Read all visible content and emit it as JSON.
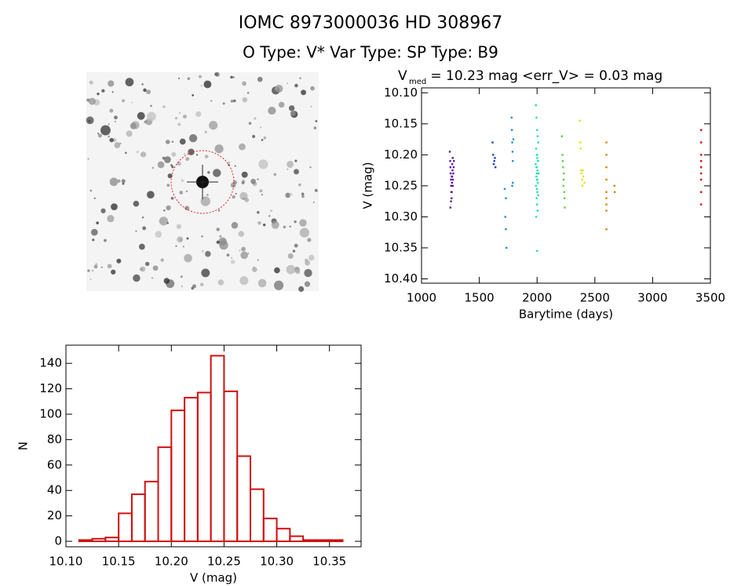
{
  "header": {
    "title": "IOMC 8973000036    HD 308967",
    "subtitle": "O Type: V*  Var Type:    SP Type: B9"
  },
  "chart_data": [
    {
      "type": "scatter",
      "title": "V",
      "title_subscript": "med",
      "title_rest": " = 10.23 mag <err_V> = 0.03 mag",
      "x_label": "Barytime (days)",
      "y_label": "V (mag)",
      "xlim": [
        1000,
        3500
      ],
      "xticks": [
        1000,
        1500,
        2000,
        2500,
        3000,
        3500
      ],
      "ylim": [
        10.407,
        10.092
      ],
      "yticks": [
        {
          "value": 10.1,
          "label": "10.10"
        },
        {
          "value": 10.15,
          "label": "10.15"
        },
        {
          "value": 10.2,
          "label": "10.20"
        },
        {
          "value": 10.25,
          "label": "10.25"
        },
        {
          "value": 10.3,
          "label": "10.30"
        },
        {
          "value": 10.35,
          "label": "10.35"
        },
        {
          "value": 10.4,
          "label": "10.40"
        }
      ],
      "series": [
        {
          "color": "#5a1a9a",
          "x": [
            1245,
            1248,
            1250,
            1252,
            1255,
            1256,
            1258,
            1260,
            1262,
            1264,
            1266,
            1268,
            1270,
            1272,
            1275,
            1278,
            1250,
            1262,
            1270,
            1255,
            1265,
            1280
          ],
          "values": [
            10.195,
            10.21,
            10.22,
            10.23,
            10.24,
            10.25,
            10.26,
            10.27,
            10.235,
            10.245,
            10.215,
            10.225,
            10.205,
            10.24,
            10.23,
            10.22,
            10.285,
            10.26,
            10.25,
            10.275,
            10.235,
            10.21
          ]
        },
        {
          "color": "#2040c0",
          "x": [
            1615,
            1620,
            1625,
            1630,
            1635,
            1640
          ],
          "values": [
            10.18,
            10.2,
            10.215,
            10.21,
            10.205,
            10.22
          ]
        },
        {
          "color": "#2090d0",
          "x": [
            1720,
            1725,
            1730,
            1735,
            1730,
            1780,
            1782,
            1785,
            1788,
            1790,
            1795,
            1790,
            1785
          ],
          "values": [
            10.255,
            10.3,
            10.32,
            10.35,
            10.27,
            10.14,
            10.16,
            10.18,
            10.195,
            10.21,
            10.175,
            10.245,
            10.25
          ]
        },
        {
          "color": "#20e0b0",
          "x": [
            1990,
            1995,
            2000,
            2005,
            2010,
            1992,
            1998,
            2002,
            2008,
            1988,
            1996,
            2004,
            2012,
            1994,
            2000,
            2006,
            1990,
            1998,
            2002,
            2010,
            1996,
            2000,
            2004,
            1992,
            2008,
            2000,
            1998,
            2002,
            2000,
            1994
          ],
          "values": [
            10.12,
            10.14,
            10.16,
            10.17,
            10.18,
            10.19,
            10.2,
            10.205,
            10.21,
            10.215,
            10.22,
            10.225,
            10.23,
            10.235,
            10.24,
            10.245,
            10.25,
            10.255,
            10.26,
            10.265,
            10.27,
            10.28,
            10.29,
            10.3,
            10.21,
            10.355,
            10.23,
            10.24,
            10.2,
            10.22
          ]
        },
        {
          "color": "#60d040",
          "x": [
            2215,
            2220,
            2225,
            2230,
            2235,
            2240,
            2228,
            2222,
            2238,
            2232
          ],
          "values": [
            10.17,
            10.2,
            10.22,
            10.24,
            10.26,
            10.285,
            10.25,
            10.21,
            10.27,
            10.23
          ]
        },
        {
          "color": "#e0e020",
          "x": [
            2370,
            2375,
            2380,
            2385,
            2390,
            2395,
            2400,
            2410,
            2378,
            2392
          ],
          "values": [
            10.145,
            10.18,
            10.225,
            10.23,
            10.24,
            10.225,
            10.235,
            10.245,
            10.19,
            10.25
          ]
        },
        {
          "color": "#e08000",
          "x": [
            2600,
            2600,
            2600,
            2600,
            2600,
            2600,
            2600,
            2600,
            2600,
            2670,
            2672
          ],
          "values": [
            10.18,
            10.2,
            10.22,
            10.24,
            10.26,
            10.27,
            10.28,
            10.29,
            10.32,
            10.25,
            10.26
          ]
        },
        {
          "color": "#d01010",
          "x": [
            3420,
            3420,
            3420,
            3420,
            3420,
            3420,
            3420,
            3420,
            3420
          ],
          "values": [
            10.16,
            10.18,
            10.2,
            10.21,
            10.22,
            10.23,
            10.24,
            10.26,
            10.28
          ]
        }
      ]
    },
    {
      "type": "histogram",
      "x_label": "V (mag)",
      "y_label": "N",
      "color": "#d01010",
      "bins": [
        10.1125,
        10.125,
        10.1375,
        10.15,
        10.1625,
        10.175,
        10.1875,
        10.2,
        10.2125,
        10.225,
        10.2375,
        10.25,
        10.2625,
        10.275,
        10.2875,
        10.3,
        10.3125,
        10.325,
        10.3375,
        10.35,
        10.3625
      ],
      "values": [
        1,
        2,
        3,
        22,
        37,
        47,
        74,
        103,
        113,
        117,
        146,
        118,
        67,
        41,
        18,
        10,
        4,
        1,
        1,
        1
      ],
      "xlim": [
        10.1,
        10.38
      ],
      "xticks": [
        {
          "value": 10.1,
          "label": "10.10"
        },
        {
          "value": 10.15,
          "label": "10.15"
        },
        {
          "value": 10.2,
          "label": "10.20"
        },
        {
          "value": 10.25,
          "label": "10.25"
        },
        {
          "value": 10.3,
          "label": "10.30"
        },
        {
          "value": 10.35,
          "label": "10.35"
        }
      ],
      "ylim": [
        -4.3,
        154.3
      ],
      "yticks": [
        0,
        20,
        40,
        60,
        80,
        100,
        120,
        140
      ]
    }
  ]
}
